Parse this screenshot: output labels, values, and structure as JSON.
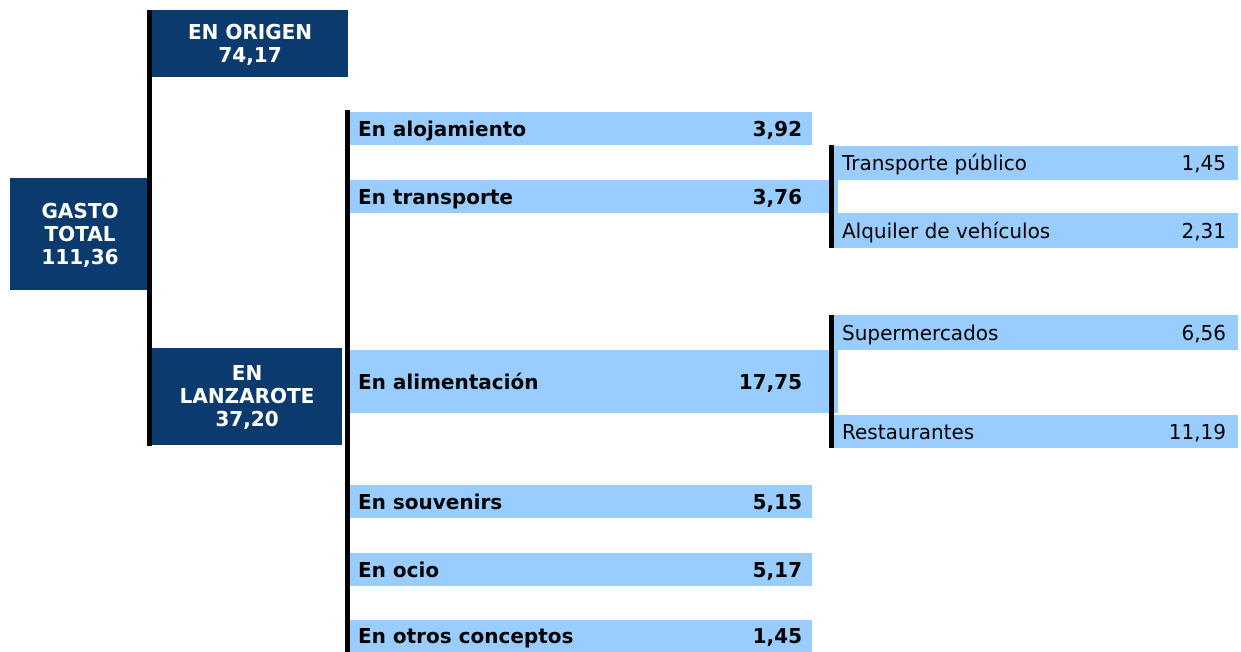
{
  "root": {
    "label": "GASTO TOTAL",
    "value": "111,36"
  },
  "branches": [
    {
      "label": "EN ORIGEN",
      "value": "74,17"
    },
    {
      "label": "EN LANZAROTE",
      "value": "37,20",
      "items": [
        {
          "label": "En alojamiento",
          "value": "3,92"
        },
        {
          "label": "En transporte",
          "value": "3,76",
          "sub": [
            {
              "label": "Transporte público",
              "value": "1,45"
            },
            {
              "label": "Alquiler de vehículos",
              "value": "2,31"
            }
          ]
        },
        {
          "label": "En alimentación",
          "value": "17,75",
          "sub": [
            {
              "label": "Supermercados",
              "value": "6,56"
            },
            {
              "label": "Restaurantes",
              "value": "11,19"
            }
          ]
        },
        {
          "label": "En souvenirs",
          "value": "5,15"
        },
        {
          "label": "En ocio",
          "value": "5,17"
        },
        {
          "label": "En otros conceptos",
          "value": "1,45"
        }
      ]
    }
  ]
}
